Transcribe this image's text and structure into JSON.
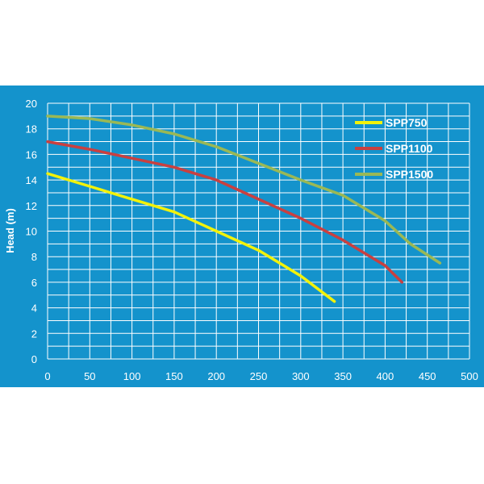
{
  "chart_data": {
    "type": "line",
    "title": "",
    "xlabel": "",
    "ylabel": "Head (m)",
    "xlim": [
      0,
      500
    ],
    "ylim": [
      0,
      20
    ],
    "xticks": [
      0,
      50,
      100,
      150,
      200,
      250,
      300,
      350,
      400,
      450,
      500
    ],
    "yticks": [
      0,
      2,
      4,
      6,
      8,
      10,
      12,
      14,
      16,
      18,
      20
    ],
    "grid": true,
    "legend_position": "top-right",
    "background_color": "#1493cc",
    "series": [
      {
        "name": "SPP750",
        "color": "#f2f20a",
        "points": [
          [
            0,
            14.5
          ],
          [
            50,
            13.5
          ],
          [
            100,
            12.5
          ],
          [
            150,
            11.5
          ],
          [
            200,
            10
          ],
          [
            250,
            8.5
          ],
          [
            300,
            6.5
          ],
          [
            340,
            4.5
          ]
        ]
      },
      {
        "name": "SPP1100",
        "color": "#c94040",
        "points": [
          [
            0,
            17
          ],
          [
            50,
            16.4
          ],
          [
            100,
            15.7
          ],
          [
            150,
            15
          ],
          [
            200,
            14
          ],
          [
            250,
            12.5
          ],
          [
            300,
            11
          ],
          [
            350,
            9.3
          ],
          [
            400,
            7.3
          ],
          [
            420,
            6
          ]
        ]
      },
      {
        "name": "SPP1500",
        "color": "#9ab855",
        "points": [
          [
            0,
            19
          ],
          [
            50,
            18.8
          ],
          [
            100,
            18.3
          ],
          [
            150,
            17.6
          ],
          [
            200,
            16.6
          ],
          [
            250,
            15.3
          ],
          [
            300,
            14
          ],
          [
            350,
            12.8
          ],
          [
            400,
            10.8
          ],
          [
            430,
            9
          ],
          [
            465,
            7.5
          ]
        ]
      }
    ]
  }
}
